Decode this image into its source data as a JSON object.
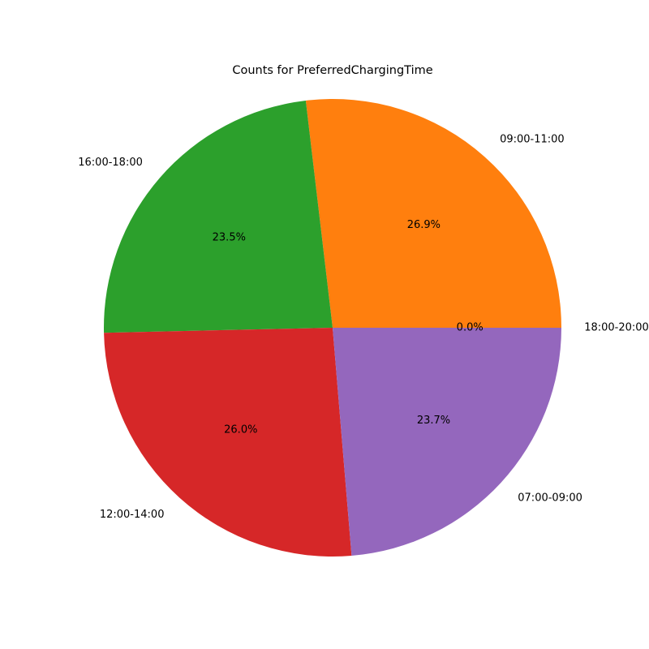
{
  "chart_data": {
    "type": "pie",
    "title": "Counts for PreferredChargingTime",
    "categories": [
      "18:00-20:00",
      "09:00-11:00",
      "16:00-18:00",
      "12:00-14:00",
      "07:00-09:00"
    ],
    "values": [
      0.0,
      26.9,
      23.5,
      26.0,
      23.7
    ],
    "value_labels": [
      "0.0%",
      "26.9%",
      "23.5%",
      "26.0%",
      "23.7%"
    ],
    "colors": [
      "#1f77b4",
      "#ff7f0e",
      "#2ca02c",
      "#d62728",
      "#9467bd"
    ],
    "start_angle_deg": 0,
    "direction": "counterclockwise",
    "legend": "none"
  }
}
